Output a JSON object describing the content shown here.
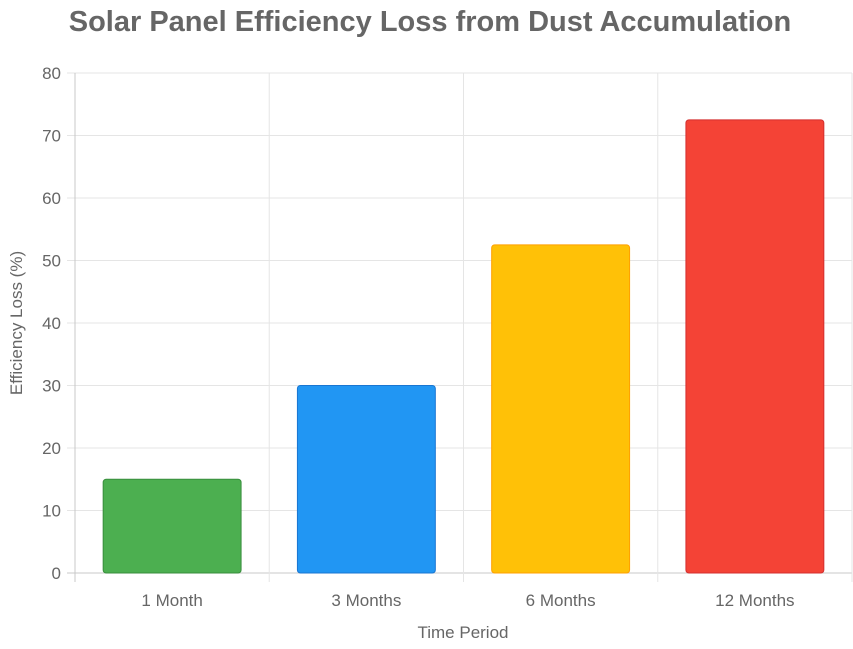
{
  "chart_data": {
    "type": "bar",
    "title": "Solar Panel Efficiency Loss from Dust Accumulation",
    "xlabel": "Time Period",
    "ylabel": "Efficiency Loss (%)",
    "categories": [
      "1 Month",
      "3 Months",
      "6 Months",
      "12 Months"
    ],
    "values": [
      15,
      30,
      52.5,
      72.5
    ],
    "ylim": [
      0,
      80
    ],
    "yticks": [
      "0",
      "10",
      "20",
      "30",
      "40",
      "50",
      "60",
      "70",
      "80"
    ],
    "grid": true,
    "legend": "none",
    "colors": {
      "bars": [
        "#4caf50",
        "#2196f3",
        "#ffc107",
        "#f44336"
      ],
      "borders": [
        "#388e3c",
        "#1976d2",
        "#ffa000",
        "#d32f2f"
      ],
      "title": "#666666",
      "text": "#666666",
      "grid": "#e5e5e5"
    }
  }
}
